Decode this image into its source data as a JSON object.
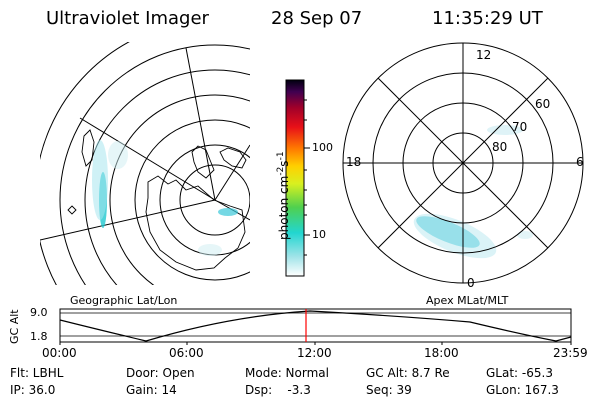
{
  "header": {
    "instrument": "Ultraviolet Imager",
    "date": "28 Sep 07",
    "time": "11:35:29 UT"
  },
  "left_panel": {
    "caption": "Geographic Lat/Lon"
  },
  "right_panel": {
    "caption": "Apex MLat/MLT",
    "mlt_labels": [
      "12",
      "18",
      "6",
      "0"
    ],
    "lat_labels": [
      "60",
      "70",
      "80"
    ]
  },
  "colorbar": {
    "label": "photon cm",
    "label_exp1": "-2",
    "label_mid": "s",
    "label_exp2": "-1",
    "ticks": [
      "100",
      "10"
    ],
    "scale": "log"
  },
  "altitude_plot": {
    "ylabel": "GC Alt",
    "yticks": [
      "9.0",
      "1.8"
    ],
    "xticks": [
      "00:00",
      "06:00",
      "12:00",
      "18:00",
      "23:59"
    ],
    "current_time_marker": "11:35",
    "marker_color": "#ff0000"
  },
  "status": {
    "row1": [
      {
        "text": "Flt: LBHL"
      },
      {
        "text": "Door: Open"
      },
      {
        "text": "Mode: Normal"
      },
      {
        "text": "GC Alt: 8.7 Re"
      },
      {
        "text": "GLat: -65.3"
      }
    ],
    "row2": [
      {
        "text": "IP: 36.0"
      },
      {
        "text": "Gain: 14"
      },
      {
        "text": "Dsp:    -3.3"
      },
      {
        "text": "Seq: 39"
      },
      {
        "text": "GLon: 167.3"
      }
    ]
  }
}
